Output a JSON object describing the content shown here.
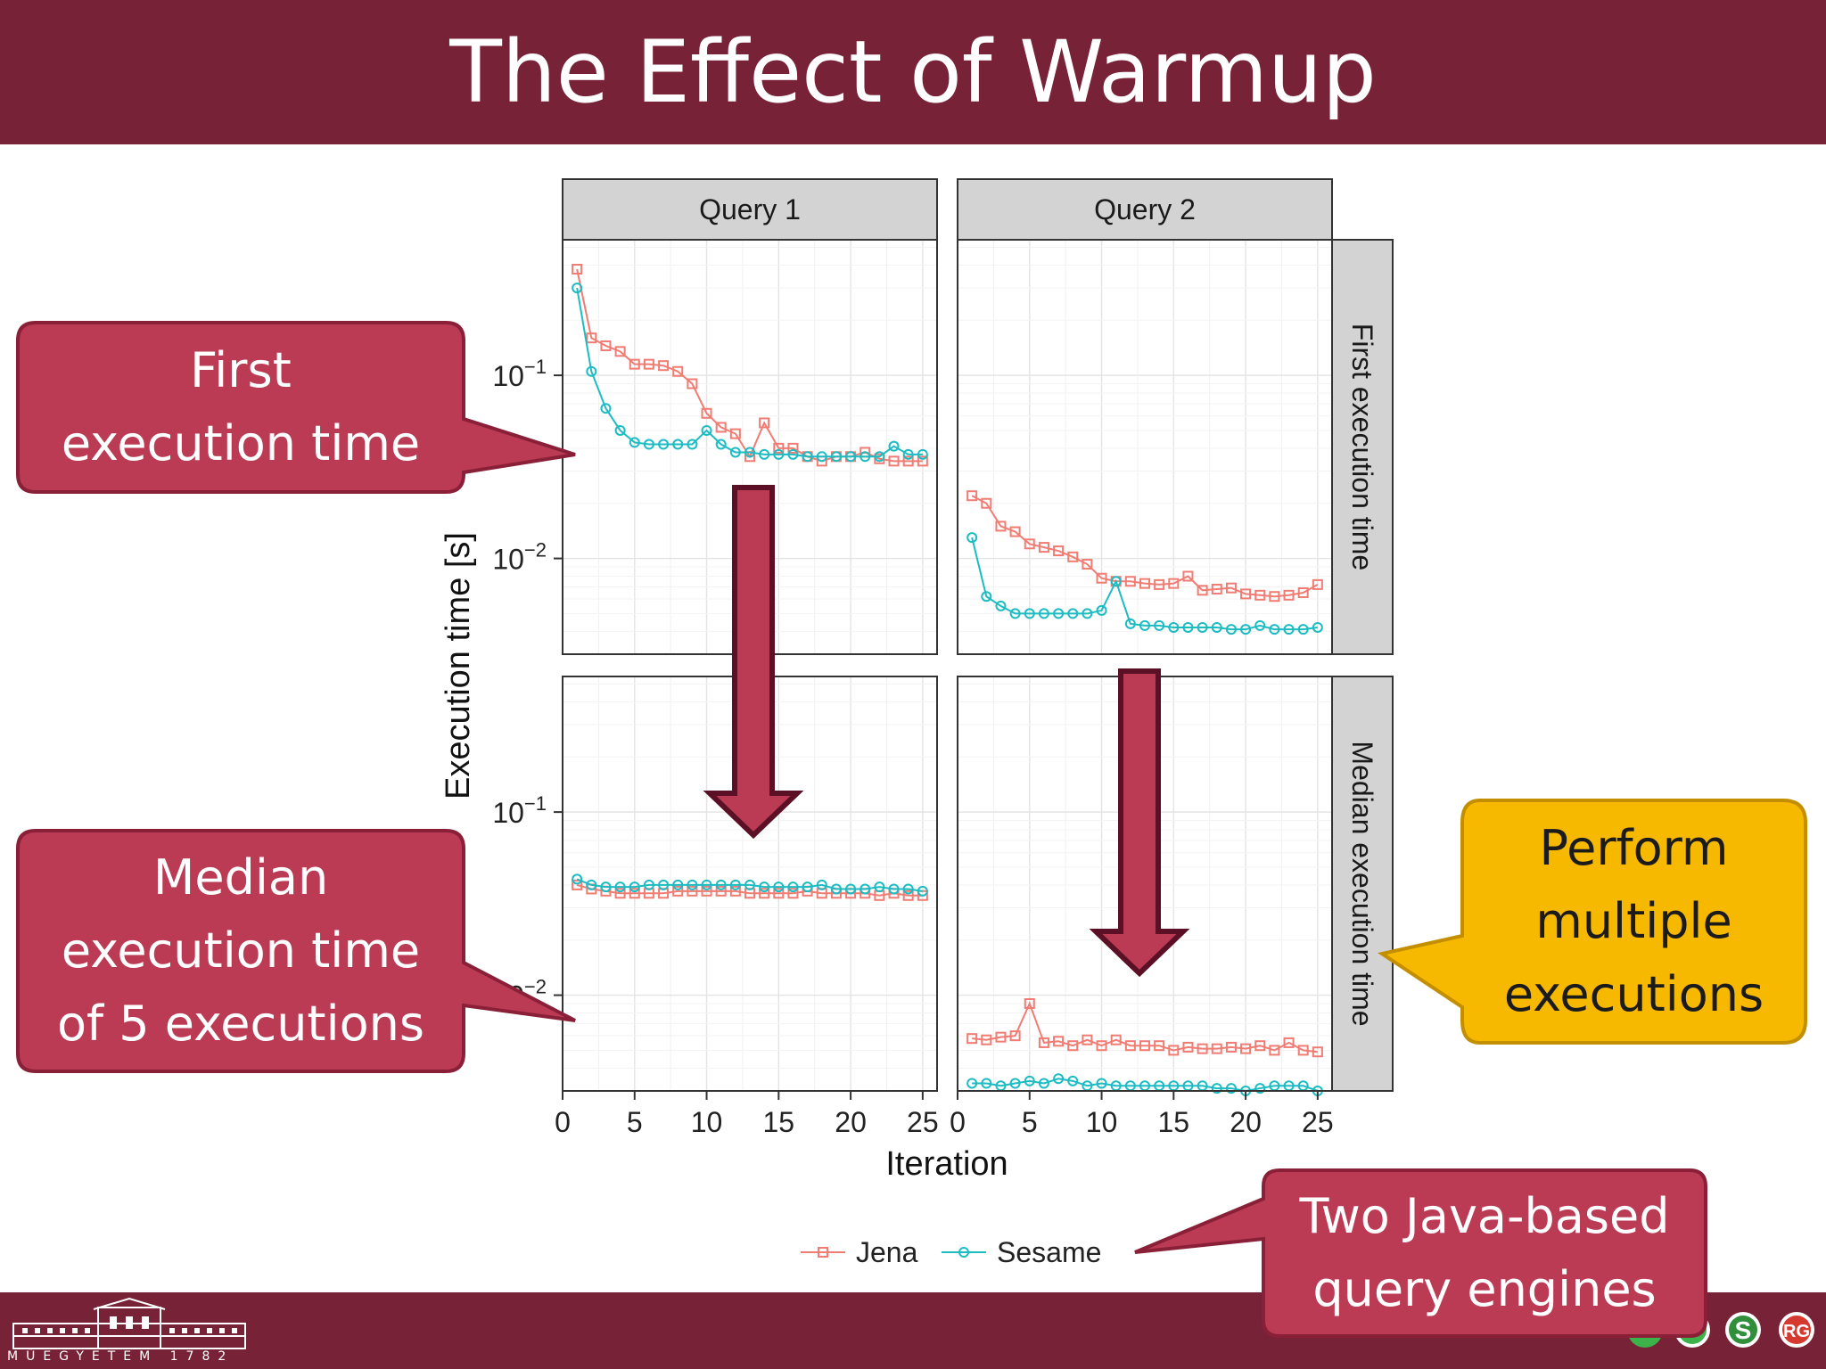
{
  "slide": {
    "title": "The Effect of Warmup",
    "footer_text": "MŰEGYETEM 1782",
    "colors": {
      "bar": "#772236",
      "callout_red": "#bb3a54",
      "callout_yellow": "#f7b800",
      "arrow": "#bb3a54",
      "jena": "#f07c73",
      "sesame": "#1cbcc2"
    }
  },
  "callouts": {
    "first": "First\nexecution time",
    "median": "Median\nexecution time\nof 5 executions",
    "perform": "Perform\nmultiple\nexecutions",
    "engines": "Two Java-based\nquery engines"
  },
  "chart_data": {
    "type": "line",
    "x_axis_label": "Iteration",
    "y_axis_label": "Execution time [s]",
    "y_scale": "log",
    "ylim": [
      0.003,
      0.55
    ],
    "xlim": [
      0,
      26
    ],
    "x_ticks": [
      0,
      5,
      10,
      15,
      20,
      25
    ],
    "y_ticks": [
      {
        "value": 0.1,
        "base": "10",
        "exp": "−1"
      },
      {
        "value": 0.01,
        "base": "10",
        "exp": "−2"
      }
    ],
    "columns": [
      "Query 1",
      "Query 2"
    ],
    "rows": [
      "First execution time",
      "Median execution time"
    ],
    "legend": {
      "position": "bottom",
      "entries": [
        "Jena",
        "Sesame"
      ]
    },
    "panels": [
      {
        "column": "Query 1",
        "row": "First execution time",
        "series": [
          {
            "name": "Jena",
            "marker": "square",
            "y": [
              0.38,
              0.16,
              0.145,
              0.135,
              0.115,
              0.115,
              0.113,
              0.105,
              0.09,
              0.062,
              0.052,
              0.048,
              0.036,
              0.055,
              0.04,
              0.04,
              0.036,
              0.034,
              0.036,
              0.036,
              0.038,
              0.035,
              0.034,
              0.034,
              0.034
            ]
          },
          {
            "name": "Sesame",
            "marker": "circle",
            "y": [
              0.3,
              0.105,
              0.066,
              0.05,
              0.043,
              0.042,
              0.042,
              0.042,
              0.042,
              0.05,
              0.042,
              0.038,
              0.038,
              0.037,
              0.037,
              0.037,
              0.036,
              0.036,
              0.036,
              0.036,
              0.036,
              0.036,
              0.041,
              0.037,
              0.037
            ]
          }
        ]
      },
      {
        "column": "Query 2",
        "row": "First execution time",
        "series": [
          {
            "name": "Jena",
            "marker": "square",
            "y": [
              0.022,
              0.02,
              0.015,
              0.014,
              0.012,
              0.0115,
              0.011,
              0.0102,
              0.0093,
              0.0078,
              0.0075,
              0.0075,
              0.0073,
              0.0072,
              0.0073,
              0.008,
              0.0067,
              0.0068,
              0.0069,
              0.0064,
              0.0063,
              0.0062,
              0.0063,
              0.0065,
              0.0072
            ]
          },
          {
            "name": "Sesame",
            "marker": "circle",
            "y": [
              0.013,
              0.0062,
              0.0055,
              0.005,
              0.005,
              0.005,
              0.005,
              0.005,
              0.005,
              0.0052,
              0.0075,
              0.0044,
              0.0043,
              0.0043,
              0.0042,
              0.0042,
              0.0042,
              0.0042,
              0.0041,
              0.0041,
              0.0043,
              0.0041,
              0.0041,
              0.0041,
              0.0042
            ]
          }
        ]
      },
      {
        "column": "Query 1",
        "row": "Median execution time",
        "series": [
          {
            "name": "Jena",
            "marker": "square",
            "y": [
              0.04,
              0.038,
              0.037,
              0.036,
              0.036,
              0.036,
              0.036,
              0.037,
              0.037,
              0.037,
              0.037,
              0.037,
              0.036,
              0.036,
              0.036,
              0.036,
              0.037,
              0.036,
              0.036,
              0.036,
              0.036,
              0.035,
              0.036,
              0.035,
              0.035
            ]
          },
          {
            "name": "Sesame",
            "marker": "circle",
            "y": [
              0.043,
              0.04,
              0.039,
              0.039,
              0.039,
              0.04,
              0.04,
              0.04,
              0.04,
              0.04,
              0.04,
              0.04,
              0.04,
              0.039,
              0.039,
              0.039,
              0.039,
              0.04,
              0.038,
              0.038,
              0.038,
              0.039,
              0.038,
              0.038,
              0.037
            ]
          }
        ]
      },
      {
        "column": "Query 2",
        "row": "Median execution time",
        "series": [
          {
            "name": "Jena",
            "marker": "square",
            "y": [
              0.0058,
              0.0057,
              0.0059,
              0.006,
              0.009,
              0.0055,
              0.0056,
              0.0053,
              0.0057,
              0.0053,
              0.0057,
              0.0053,
              0.0053,
              0.0053,
              0.005,
              0.0052,
              0.0051,
              0.0051,
              0.0052,
              0.0051,
              0.0053,
              0.005,
              0.0055,
              0.005,
              0.0049
            ]
          },
          {
            "name": "Sesame",
            "marker": "circle",
            "y": [
              0.0033,
              0.0033,
              0.0032,
              0.0033,
              0.0034,
              0.0033,
              0.0035,
              0.0034,
              0.0032,
              0.0033,
              0.0032,
              0.0032,
              0.0032,
              0.0032,
              0.0032,
              0.0032,
              0.0032,
              0.0031,
              0.0031,
              0.003,
              0.0031,
              0.0032,
              0.0032,
              0.0032,
              0.003
            ]
          }
        ]
      }
    ]
  }
}
